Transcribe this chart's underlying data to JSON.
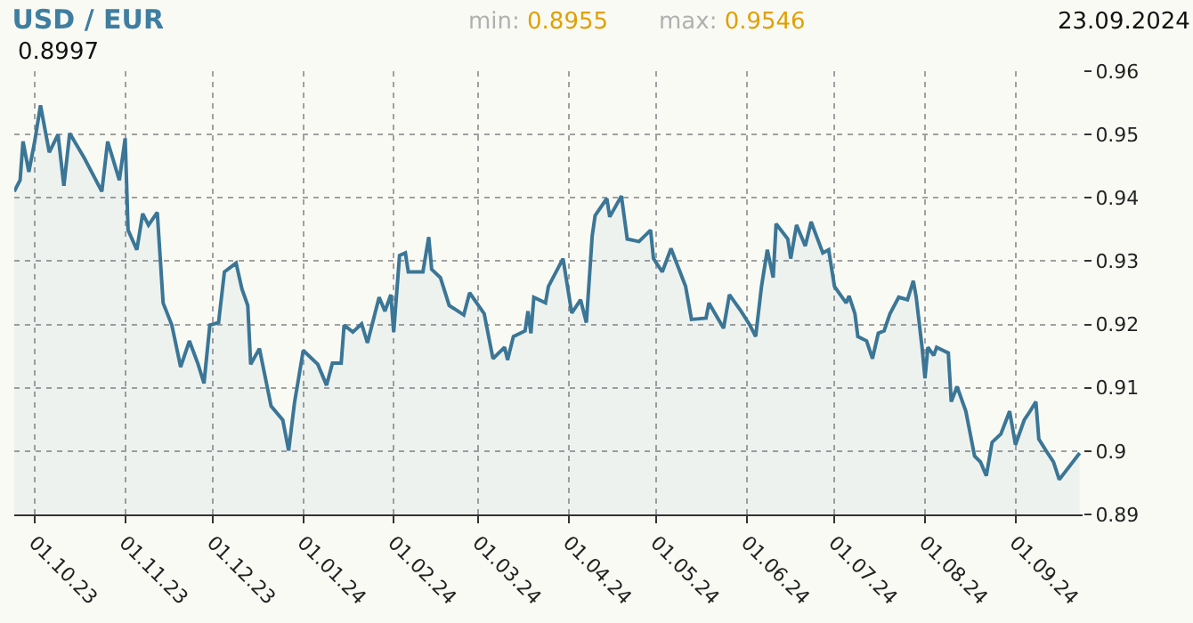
{
  "chart_data": {
    "type": "area",
    "title": "USD / EUR",
    "annotations": [
      "min: 0.8955",
      "max: 0.9546",
      "23.09.2024",
      "0.8997"
    ],
    "x": [
      "2023-09-24",
      "2023-09-26",
      "2023-09-27",
      "2023-09-29",
      "2023-10-01",
      "2023-10-03",
      "2023-10-06",
      "2023-10-09",
      "2023-10-11",
      "2023-10-13",
      "2023-10-18",
      "2023-10-24",
      "2023-10-26",
      "2023-10-30",
      "2023-11-01",
      "2023-11-02",
      "2023-11-05",
      "2023-11-07",
      "2023-11-09",
      "2023-11-12",
      "2023-11-14",
      "2023-11-17",
      "2023-11-20",
      "2023-11-23",
      "2023-11-26",
      "2023-11-28",
      "2023-11-30",
      "2023-12-03",
      "2023-12-05",
      "2023-12-09",
      "2023-12-11",
      "2023-12-13",
      "2023-12-14",
      "2023-12-17",
      "2023-12-21",
      "2023-12-25",
      "2023-12-27",
      "2023-12-29",
      "2024-01-01",
      "2024-01-06",
      "2024-01-09",
      "2024-01-11",
      "2024-01-14",
      "2024-01-15",
      "2024-01-18",
      "2024-01-21",
      "2024-01-23",
      "2024-01-27",
      "2024-01-29",
      "2024-01-31",
      "2024-02-01",
      "2024-02-03",
      "2024-02-05",
      "2024-02-06",
      "2024-02-11",
      "2024-02-13",
      "2024-02-14",
      "2024-02-17",
      "2024-02-20",
      "2024-02-25",
      "2024-02-27",
      "2024-03-03",
      "2024-03-06",
      "2024-03-10",
      "2024-03-11",
      "2024-03-13",
      "2024-03-17",
      "2024-03-18",
      "2024-03-19",
      "2024-03-20",
      "2024-03-24",
      "2024-03-25",
      "2024-03-30",
      "2024-04-02",
      "2024-04-05",
      "2024-04-07",
      "2024-04-09",
      "2024-04-10",
      "2024-04-14",
      "2024-04-15",
      "2024-04-19",
      "2024-04-21",
      "2024-04-25",
      "2024-04-29",
      "2024-04-30",
      "2024-05-03",
      "2024-05-06",
      "2024-05-11",
      "2024-05-13",
      "2024-05-18",
      "2024-05-19",
      "2024-05-24",
      "2024-05-26",
      "2024-05-30",
      "2024-06-02",
      "2024-06-04",
      "2024-06-06",
      "2024-06-08",
      "2024-06-10",
      "2024-06-11",
      "2024-06-15",
      "2024-06-16",
      "2024-06-18",
      "2024-06-21",
      "2024-06-23",
      "2024-06-27",
      "2024-06-29",
      "2024-07-01",
      "2024-07-05",
      "2024-07-06",
      "2024-07-08",
      "2024-07-09",
      "2024-07-12",
      "2024-07-14",
      "2024-07-16",
      "2024-07-18",
      "2024-07-20",
      "2024-07-23",
      "2024-07-26",
      "2024-07-28",
      "2024-07-29",
      "2024-07-31",
      "2024-08-01",
      "2024-08-02",
      "2024-08-04",
      "2024-08-05",
      "2024-08-09",
      "2024-08-10",
      "2024-08-12",
      "2024-08-15",
      "2024-08-18",
      "2024-08-20",
      "2024-08-22",
      "2024-08-24",
      "2024-08-27",
      "2024-08-30",
      "2024-09-01",
      "2024-09-04",
      "2024-09-06",
      "2024-09-08",
      "2024-09-09",
      "2024-09-12",
      "2024-09-14",
      "2024-09-16",
      "2024-09-23"
    ],
    "series": [
      {
        "color": "#3b7696",
        "values": [
          0.941,
          0.9428,
          0.9489,
          0.9441,
          0.9489,
          0.9546,
          0.9472,
          0.95,
          0.9419,
          0.9502,
          0.9463,
          0.941,
          0.9489,
          0.9428,
          0.9494,
          0.9349,
          0.9318,
          0.9375,
          0.9357,
          0.9377,
          0.9234,
          0.9199,
          0.9133,
          0.9174,
          0.9137,
          0.9107,
          0.9199,
          0.9203,
          0.9283,
          0.9297,
          0.9256,
          0.923,
          0.9137,
          0.9162,
          0.9071,
          0.9049,
          0.9001,
          0.9076,
          0.9159,
          0.9137,
          0.9104,
          0.9139,
          0.9139,
          0.9199,
          0.9188,
          0.9201,
          0.9171,
          0.9243,
          0.9221,
          0.9247,
          0.9188,
          0.9309,
          0.9313,
          0.9283,
          0.9283,
          0.9338,
          0.9287,
          0.9274,
          0.923,
          0.9215,
          0.925,
          0.9217,
          0.9146,
          0.9164,
          0.9144,
          0.9181,
          0.919,
          0.9221,
          0.9186,
          0.9243,
          0.9234,
          0.926,
          0.9304,
          0.9218,
          0.9239,
          0.9203,
          0.934,
          0.9372,
          0.9399,
          0.937,
          0.9403,
          0.9335,
          0.9331,
          0.9349,
          0.9304,
          0.9283,
          0.932,
          0.926,
          0.9208,
          0.921,
          0.9234,
          0.9194,
          0.9247,
          0.9221,
          0.9199,
          0.9181,
          0.926,
          0.9318,
          0.9274,
          0.9359,
          0.9335,
          0.9304,
          0.9357,
          0.9324,
          0.9362,
          0.9313,
          0.9318,
          0.926,
          0.9234,
          0.9245,
          0.9217,
          0.9181,
          0.9174,
          0.9146,
          0.9186,
          0.919,
          0.9217,
          0.9243,
          0.9239,
          0.9269,
          0.9243,
          0.9164,
          0.9115,
          0.9164,
          0.9151,
          0.9164,
          0.9155,
          0.9078,
          0.9102,
          0.9063,
          0.8992,
          0.8983,
          0.8961,
          0.9014,
          0.9027,
          0.9063,
          0.901,
          0.9049,
          0.9063,
          0.9078,
          0.9019,
          0.8997,
          0.8983,
          0.8955,
          0.8997
        ]
      }
    ],
    "xlim": [
      "2023-09-24",
      "2024-09-24"
    ],
    "xticks": [
      {
        "value": "2023-10-01",
        "label": "01.10.23"
      },
      {
        "value": "2023-11-01",
        "label": "01.11.23"
      },
      {
        "value": "2023-12-01",
        "label": "01.12.23"
      },
      {
        "value": "2024-01-01",
        "label": "01.01.24"
      },
      {
        "value": "2024-02-01",
        "label": "01.02.24"
      },
      {
        "value": "2024-03-01",
        "label": "01.03.24"
      },
      {
        "value": "2024-04-01",
        "label": "01.04.24"
      },
      {
        "value": "2024-05-01",
        "label": "01.05.24"
      },
      {
        "value": "2024-06-01",
        "label": "01.06.24"
      },
      {
        "value": "2024-07-01",
        "label": "01.07.24"
      },
      {
        "value": "2024-08-01",
        "label": "01.08.24"
      },
      {
        "value": "2024-09-01",
        "label": "01.09.24"
      }
    ],
    "ylim": [
      0.89,
      0.96
    ],
    "yticks": [
      0.89,
      0.9,
      0.91,
      0.92,
      0.93,
      0.94,
      0.95,
      0.96
    ],
    "grid": true,
    "marker": "none",
    "line_style": "solid"
  }
}
